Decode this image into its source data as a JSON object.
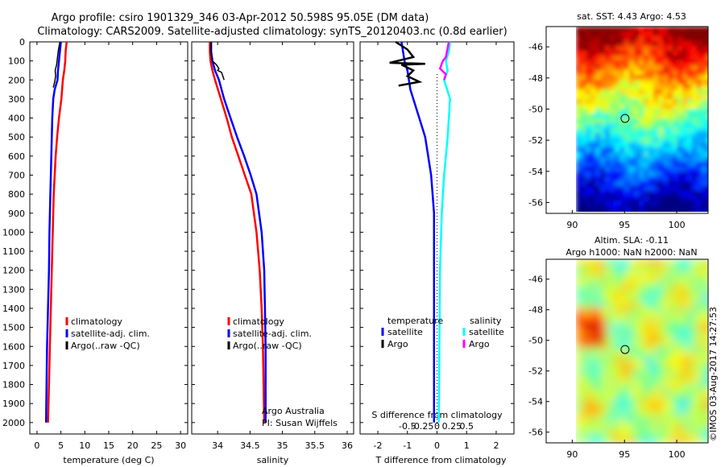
{
  "title": {
    "line1": "Argo profile: csiro 1901329_346 03-Apr-2012 50.598S 95.05E (DM data)",
    "line2": "Climatology: CARS2009. Satellite-adjusted climatology: synTS_20120403.nc (0.8d earlier)"
  },
  "side_stamp": "©IMOS 03-Aug-2017 14:27:53",
  "colors": {
    "climatology": "#ff0000",
    "satellite": "#0000ff",
    "argo": "#000000",
    "sal_satellite": "#00ffff",
    "sal_argo": "#ff00ff"
  },
  "chart_data": [
    {
      "type": "line",
      "panel": "temperature",
      "xlabel": "temperature (deg C)",
      "ylabel": "",
      "xlim": [
        -1.5,
        31.5
      ],
      "ylim": [
        2060,
        0
      ],
      "xticks": [
        0,
        5,
        10,
        15,
        20,
        25,
        30
      ],
      "yticks": [
        0,
        100,
        200,
        300,
        400,
        500,
        600,
        700,
        800,
        900,
        1000,
        1100,
        1200,
        1300,
        1400,
        1500,
        1600,
        1700,
        1800,
        1900,
        2000
      ],
      "legend": {
        "placement": "center-right",
        "entries": [
          "climatology",
          "satellite-adj. clim.",
          "Argo(..raw -QC)"
        ]
      },
      "series": [
        {
          "name": "climatology",
          "x": [
            6.2,
            6.0,
            5.9,
            5.7,
            5.4,
            5.1,
            4.6,
            4.2,
            3.9,
            3.7,
            3.5,
            3.3,
            3.1,
            2.9,
            2.7,
            2.5,
            2.3
          ],
          "y": [
            0,
            50,
            100,
            150,
            200,
            300,
            400,
            500,
            600,
            700,
            800,
            1000,
            1200,
            1400,
            1600,
            1800,
            2000
          ]
        },
        {
          "name": "satellite-adj. clim.",
          "x": [
            5.0,
            4.8,
            4.6,
            4.4,
            4.3,
            3.7,
            3.4,
            3.2,
            3.1,
            3.0,
            2.9,
            2.8,
            2.6,
            2.5,
            2.3,
            2.1,
            2.0,
            1.9
          ],
          "y": [
            0,
            50,
            100,
            150,
            200,
            250,
            300,
            400,
            500,
            600,
            700,
            800,
            1000,
            1200,
            1400,
            1600,
            1800,
            2000
          ]
        },
        {
          "name": "Argo(..raw -QC)",
          "x": [
            4.8,
            4.5,
            4.3,
            4.1,
            3.8,
            3.9,
            3.7,
            3.5,
            3.4
          ],
          "y": [
            0,
            40,
            80,
            120,
            150,
            180,
            210,
            230,
            240
          ]
        }
      ]
    },
    {
      "type": "line",
      "panel": "salinity",
      "xlabel": "salinity",
      "xlim": [
        33.6,
        36.1
      ],
      "ylim": [
        2060,
        0
      ],
      "xticks": [
        34,
        34.5,
        35,
        35.5,
        36
      ],
      "legend": {
        "placement": "center-right",
        "entries": [
          "climatology",
          "satellite-adj. clim.",
          "Argo(..raw -QC)"
        ]
      },
      "annotation": [
        "Argo Australia",
        "PI: Susan Wijffels"
      ],
      "series": [
        {
          "name": "climatology",
          "x": [
            33.88,
            33.88,
            33.89,
            33.92,
            33.96,
            34.05,
            34.14,
            34.22,
            34.32,
            34.42,
            34.52,
            34.6,
            34.65,
            34.68,
            34.7,
            34.71,
            34.72
          ],
          "y": [
            0,
            50,
            100,
            150,
            200,
            300,
            400,
            500,
            600,
            700,
            800,
            1000,
            1200,
            1400,
            1600,
            1800,
            2000
          ]
        },
        {
          "name": "satellite-adj. clim.",
          "x": [
            33.9,
            33.9,
            33.92,
            33.96,
            34.02,
            34.1,
            34.2,
            34.3,
            34.41,
            34.51,
            34.6,
            34.68,
            34.72,
            34.73,
            34.74,
            34.74
          ],
          "y": [
            0,
            50,
            100,
            150,
            200,
            300,
            400,
            500,
            600,
            700,
            800,
            1000,
            1200,
            1400,
            1600,
            2000
          ]
        },
        {
          "name": "Argo(..raw -QC)",
          "x": [
            33.9,
            33.9,
            33.92,
            33.98,
            34.02,
            34.0,
            34.06,
            34.1
          ],
          "y": [
            0,
            60,
            100,
            120,
            140,
            150,
            160,
            200
          ]
        }
      ]
    },
    {
      "type": "line",
      "panel": "difference",
      "xlabel": "T difference from climatology",
      "xlabel_top": "S difference from climatology",
      "xlim": [
        -2.6,
        2.6
      ],
      "ylim": [
        2060,
        0
      ],
      "xticks": [
        -2,
        -1,
        0,
        1,
        2
      ],
      "xticks_top": [
        -0.5,
        -0.25,
        0,
        0.25,
        0.5
      ],
      "legend": {
        "placement": "center",
        "group_labels": [
          "temperature",
          "salinity"
        ],
        "entries": [
          "satellite",
          "Argo",
          "satellite",
          "Argo"
        ]
      },
      "series": [
        {
          "name": "temperature satellite",
          "x": [
            -1.2,
            -1.15,
            -1.1,
            -1.0,
            -0.9,
            -0.6,
            -0.4,
            -0.3,
            -0.2,
            -0.15,
            -0.1,
            -0.1,
            -0.1,
            -0.1
          ],
          "y": [
            0,
            50,
            100,
            150,
            250,
            400,
            500,
            600,
            700,
            800,
            900,
            1200,
            1600,
            2000
          ]
        },
        {
          "name": "temperature Argo",
          "x": [
            -1.4,
            -1.0,
            -0.8,
            -1.6,
            -0.4,
            -1.2,
            -0.8,
            -1.0,
            -0.6,
            -1.3
          ],
          "y": [
            0,
            40,
            80,
            110,
            115,
            120,
            150,
            180,
            210,
            230
          ]
        },
        {
          "name": "salinity satellite",
          "x": [
            0.22,
            0.2,
            0.15,
            0.18,
            0.12,
            0.22,
            0.18,
            0.12,
            0.08,
            0.05,
            0.04,
            0.03
          ],
          "y": [
            0,
            50,
            100,
            150,
            200,
            300,
            500,
            700,
            900,
            1200,
            1600,
            2000
          ]
        },
        {
          "name": "salinity Argo",
          "x": [
            0.2,
            0.15,
            0.1,
            0.05,
            0.15,
            0.12
          ],
          "y": [
            0,
            80,
            100,
            140,
            170,
            200
          ]
        }
      ]
    }
  ],
  "maps": [
    {
      "title": "sat. SST: 4.43 Argo: 4.53",
      "xticks": [
        90,
        95,
        100
      ],
      "yticks": [
        -46,
        -48,
        -50,
        -52,
        -54,
        -56
      ],
      "xlim": [
        87.5,
        103
      ],
      "ylim": [
        -56.7,
        -44.7
      ],
      "marker": {
        "lon": 95.05,
        "lat": -50.6
      }
    },
    {
      "title_lines": [
        "Altim. SLA: -0.11",
        "Argo h1000: NaN h2000: NaN"
      ],
      "xticks": [
        90,
        95,
        100
      ],
      "yticks": [
        -46,
        -48,
        -50,
        -52,
        -54,
        -56
      ],
      "xlim": [
        87.5,
        103
      ],
      "ylim": [
        -56.7,
        -44.7
      ],
      "marker": {
        "lon": 95.05,
        "lat": -50.6
      }
    }
  ]
}
